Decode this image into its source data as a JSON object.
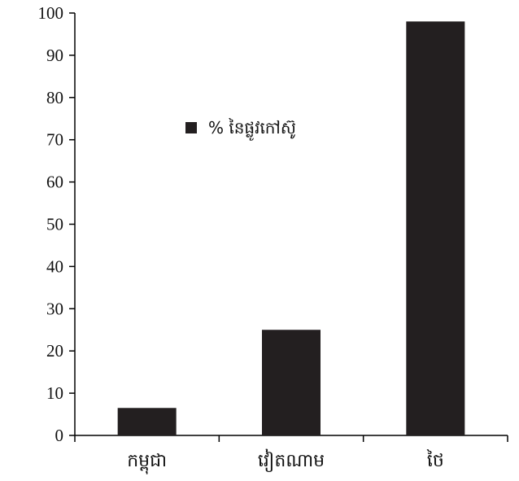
{
  "chart_data": {
    "type": "bar",
    "categories": [
      "កម្ពុជា",
      "វៀតណាម",
      "ថៃ"
    ],
    "series": [
      {
        "name": "% នៃផ្លូវកៅស៊ូ",
        "values": [
          6.5,
          25,
          98
        ]
      }
    ],
    "ylim": [
      0,
      100
    ],
    "yticks": [
      0,
      10,
      20,
      30,
      40,
      50,
      60,
      70,
      80,
      90,
      100
    ],
    "legend_position": "upper-left inside plot",
    "grid": false,
    "colors": {
      "bar": "#231f20",
      "axis": "#000000"
    }
  }
}
